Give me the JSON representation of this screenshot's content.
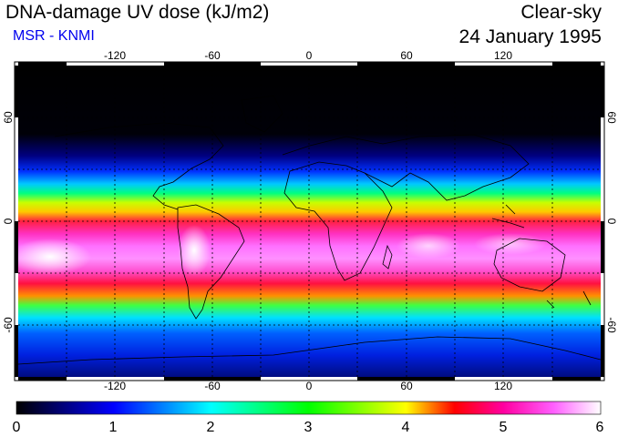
{
  "header": {
    "title": "DNA-damage UV dose (kJ/m2)",
    "subtitle": "MSR - KNMI",
    "condition": "Clear-sky",
    "date": "24 January 1995"
  },
  "map": {
    "lon_ticks": [
      "-120",
      "-60",
      "0",
      "60",
      "120"
    ],
    "lat_ticks_left": [
      "60",
      "0",
      "-60"
    ],
    "lat_ticks_right": [
      "60",
      "0",
      "-60"
    ]
  },
  "colorbar": {
    "labels": [
      "0",
      "1",
      "2",
      "3",
      "4",
      "5",
      "6"
    ],
    "colors": [
      "#000000",
      "#0000ff",
      "#00ffff",
      "#00ff00",
      "#ffff00",
      "#ff0000",
      "#ff00ff",
      "#ffffff"
    ]
  }
}
